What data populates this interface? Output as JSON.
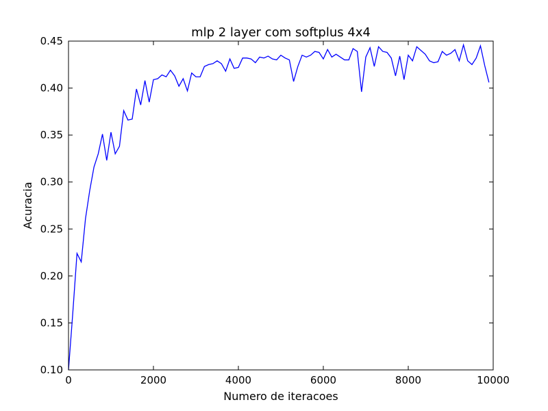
{
  "chart_data": {
    "type": "line",
    "title": "mlp 2 layer com softplus 4x4",
    "xlabel": "Numero de iteracoes",
    "ylabel": "Acuracia",
    "xlim": [
      0,
      10000
    ],
    "ylim": [
      0.1,
      0.45
    ],
    "xticks": [
      "0",
      "2000",
      "4000",
      "6000",
      "8000",
      "10000"
    ],
    "yticks": [
      "0.10",
      "0.15",
      "0.20",
      "0.25",
      "0.30",
      "0.35",
      "0.40",
      "0.45"
    ],
    "grid": false,
    "line_color": "#0000ff",
    "series": [
      {
        "x": [
          0,
          100,
          200,
          300,
          400,
          500,
          600,
          700,
          800,
          900,
          1000,
          1100,
          1200,
          1300,
          1400,
          1500,
          1600,
          1700,
          1800,
          1900,
          2000,
          2100,
          2200,
          2300,
          2400,
          2500,
          2600,
          2700,
          2800,
          2900,
          3000,
          3100,
          3200,
          3300,
          3400,
          3500,
          3600,
          3700,
          3800,
          3900,
          4000,
          4100,
          4200,
          4300,
          4400,
          4500,
          4600,
          4700,
          4800,
          4900,
          5000,
          5100,
          5200,
          5300,
          5400,
          5500,
          5600,
          5700,
          5800,
          5900,
          6000,
          6100,
          6200,
          6300,
          6400,
          6500,
          6600,
          6700,
          6800,
          6900,
          7000,
          7100,
          7200,
          7300,
          7400,
          7500,
          7600,
          7700,
          7800,
          7900,
          8000,
          8100,
          8200,
          8300,
          8400,
          8500,
          8600,
          8700,
          8800,
          8900,
          9000,
          9100,
          9200,
          9300,
          9400,
          9500,
          9600,
          9700,
          9800,
          9900
        ],
        "y": [
          0.1,
          0.16,
          0.224,
          0.215,
          0.261,
          0.291,
          0.316,
          0.33,
          0.351,
          0.323,
          0.353,
          0.33,
          0.338,
          0.376,
          0.366,
          0.367,
          0.399,
          0.382,
          0.408,
          0.385,
          0.409,
          0.41,
          0.414,
          0.412,
          0.419,
          0.413,
          0.402,
          0.41,
          0.397,
          0.416,
          0.412,
          0.412,
          0.423,
          0.425,
          0.426,
          0.429,
          0.426,
          0.418,
          0.431,
          0.421,
          0.422,
          0.432,
          0.432,
          0.431,
          0.427,
          0.433,
          0.432,
          0.434,
          0.431,
          0.43,
          0.435,
          0.432,
          0.43,
          0.407,
          0.423,
          0.435,
          0.433,
          0.435,
          0.439,
          0.438,
          0.431,
          0.441,
          0.433,
          0.436,
          0.433,
          0.43,
          0.43,
          0.442,
          0.439,
          0.396,
          0.433,
          0.443,
          0.423,
          0.444,
          0.439,
          0.438,
          0.432,
          0.413,
          0.434,
          0.409,
          0.435,
          0.429,
          0.444,
          0.44,
          0.436,
          0.429,
          0.427,
          0.428,
          0.439,
          0.435,
          0.437,
          0.441,
          0.429,
          0.446,
          0.429,
          0.425,
          0.432,
          0.445,
          0.424,
          0.406
        ]
      }
    ]
  }
}
